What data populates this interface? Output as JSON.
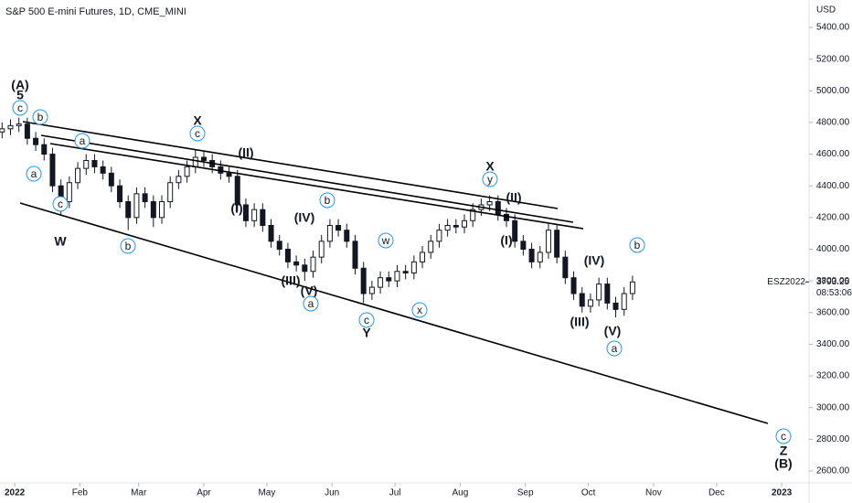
{
  "chart_data": {
    "type": "candlestick",
    "title": "S&P 500 E-mini Futures, 1D, CME_MINI",
    "currency": "USD",
    "x": [
      -6,
      -2,
      2,
      6,
      10,
      14,
      18,
      22,
      26,
      30,
      34,
      38,
      42,
      46,
      50,
      54,
      58,
      62,
      66,
      70,
      74,
      78,
      82,
      86,
      90,
      94,
      98,
      102,
      106,
      110,
      114,
      118,
      122,
      126,
      130,
      134,
      138,
      142,
      146,
      150,
      154,
      158,
      162,
      166,
      170,
      174,
      178,
      182,
      186,
      190,
      194,
      198,
      202,
      206,
      210,
      214,
      218,
      222,
      226,
      230,
      234,
      238,
      242,
      246,
      250,
      254,
      258,
      262,
      266,
      270,
      274,
      278,
      282,
      286,
      290,
      294
    ],
    "open": [
      4740,
      4760,
      4780,
      4790,
      4700,
      4660,
      4600,
      4400,
      4300,
      4420,
      4510,
      4560,
      4520,
      4480,
      4400,
      4300,
      4200,
      4350,
      4300,
      4200,
      4300,
      4420,
      4460,
      4520,
      4580,
      4560,
      4520,
      4480,
      4460,
      4280,
      4180,
      4250,
      4150,
      4050,
      4000,
      3920,
      3900,
      3860,
      3950,
      4050,
      4150,
      4120,
      4050,
      3880,
      3720,
      3760,
      3820,
      3800,
      3860,
      3850,
      3920,
      3980,
      4050,
      4120,
      4150,
      4140,
      4180,
      4250,
      4280,
      4300,
      4220,
      4180,
      4050,
      4000,
      3920,
      3980,
      4120,
      3950,
      3820,
      3720,
      3640,
      3680,
      3780,
      3660,
      3620,
      3720
    ],
    "high": [
      4800,
      4820,
      4830,
      4830,
      4740,
      4700,
      4640,
      4440,
      4460,
      4550,
      4600,
      4600,
      4560,
      4520,
      4440,
      4340,
      4390,
      4390,
      4340,
      4340,
      4460,
      4500,
      4560,
      4630,
      4620,
      4600,
      4560,
      4520,
      4500,
      4320,
      4290,
      4290,
      4190,
      4090,
      4040,
      3960,
      3940,
      3990,
      4090,
      4190,
      4190,
      4160,
      4090,
      3920,
      3800,
      3860,
      3860,
      3900,
      3900,
      3960,
      4020,
      4090,
      4160,
      4190,
      4190,
      4220,
      4290,
      4320,
      4340,
      4340,
      4260,
      4220,
      4090,
      4040,
      4020,
      4160,
      4160,
      3990,
      3860,
      3760,
      3720,
      3820,
      3820,
      3700,
      3760,
      3833
    ],
    "low": [
      4700,
      4720,
      4740,
      4660,
      4620,
      4560,
      4360,
      4220,
      4260,
      4380,
      4470,
      4480,
      4440,
      4360,
      4260,
      4120,
      4160,
      4260,
      4140,
      4160,
      4260,
      4380,
      4420,
      4480,
      4520,
      4480,
      4440,
      4420,
      4240,
      4140,
      4140,
      4110,
      4010,
      3960,
      3880,
      3860,
      3800,
      3820,
      3910,
      4010,
      4080,
      4010,
      3840,
      3660,
      3680,
      3720,
      3760,
      3760,
      3810,
      3810,
      3880,
      3940,
      4010,
      4080,
      4100,
      4100,
      4140,
      4210,
      4240,
      4180,
      4140,
      4010,
      3960,
      3880,
      3880,
      3940,
      3910,
      3780,
      3680,
      3600,
      3600,
      3640,
      3620,
      3570,
      3580,
      3680
    ],
    "close": [
      4760,
      4780,
      4790,
      4700,
      4660,
      4600,
      4400,
      4300,
      4420,
      4510,
      4560,
      4520,
      4480,
      4400,
      4300,
      4200,
      4350,
      4300,
      4200,
      4300,
      4420,
      4460,
      4520,
      4580,
      4560,
      4520,
      4480,
      4460,
      4280,
      4180,
      4250,
      4150,
      4050,
      4000,
      3920,
      3900,
      3860,
      3950,
      4050,
      4150,
      4120,
      4050,
      3880,
      3720,
      3760,
      3820,
      3800,
      3860,
      3850,
      3920,
      3980,
      4050,
      4120,
      4150,
      4140,
      4180,
      4250,
      4280,
      4300,
      4220,
      4180,
      4050,
      4000,
      3920,
      3980,
      4120,
      3950,
      3820,
      3720,
      3640,
      3680,
      3780,
      3660,
      3620,
      3720,
      3793.25
    ],
    "up_color": "#ffffff",
    "down_color": "#131722",
    "wick_color": "#131722",
    "xlim": [
      -7,
      378
    ],
    "xticks": [
      {
        "value": 0,
        "label": "2022"
      },
      {
        "value": 31,
        "label": "Feb"
      },
      {
        "value": 59,
        "label": "Mar"
      },
      {
        "value": 90,
        "label": "Apr"
      },
      {
        "value": 120,
        "label": "May"
      },
      {
        "value": 151,
        "label": "Jun"
      },
      {
        "value": 181,
        "label": "Jul"
      },
      {
        "value": 212,
        "label": "Aug"
      },
      {
        "value": 243,
        "label": "Sep"
      },
      {
        "value": 273,
        "label": "Oct"
      },
      {
        "value": 304,
        "label": "Nov"
      },
      {
        "value": 334,
        "label": "Dec"
      },
      {
        "value": 365,
        "label": "2023"
      }
    ],
    "ylim": [
      2525,
      5573
    ],
    "yticks": [
      {
        "value": 5400,
        "label": "5400.00"
      },
      {
        "value": 5200,
        "label": "5200.00"
      },
      {
        "value": 5000,
        "label": "5000.00"
      },
      {
        "value": 4800,
        "label": "4800.00"
      },
      {
        "value": 4600,
        "label": "4600.00"
      },
      {
        "value": 4400,
        "label": "4400.00"
      },
      {
        "value": 4200,
        "label": "4200.00"
      },
      {
        "value": 4000,
        "label": "4000.00"
      },
      {
        "value": 3800,
        "label": "3800.00"
      },
      {
        "value": 3600,
        "label": "3600.00"
      },
      {
        "value": 3400,
        "label": "3400.00"
      },
      {
        "value": 3200,
        "label": "3200.00"
      },
      {
        "value": 3000,
        "label": "3000.00"
      },
      {
        "value": 2800,
        "label": "2800.00"
      },
      {
        "value": 2600,
        "label": "2600.00"
      }
    ],
    "last_price": {
      "value": 3793.25,
      "label": "3793.25",
      "symbol": "ESZ2022",
      "countdown": "08:53:06"
    },
    "annotations": [
      {
        "text": "(A)",
        "color": "#1b5e20",
        "circle": false
      },
      {
        "text": "5",
        "color": "#880e4f",
        "circle": false
      },
      {
        "text": "c",
        "color": "#2196f3",
        "circle": true
      },
      {
        "text": "b",
        "color": "#2196f3",
        "circle": true
      },
      {
        "text": "a",
        "color": "#2196f3",
        "circle": true
      },
      {
        "text": "c",
        "color": "#2196f3",
        "circle": true
      },
      {
        "text": "W",
        "color": "#880e4f",
        "circle": false
      },
      {
        "text": "a",
        "color": "#2196f3",
        "circle": true
      },
      {
        "text": "b",
        "color": "#2196f3",
        "circle": true
      },
      {
        "text": "X",
        "color": "#880e4f",
        "circle": false
      },
      {
        "text": "c",
        "color": "#2196f3",
        "circle": true
      },
      {
        "text": "(II)",
        "color": "#26a69a",
        "circle": false
      },
      {
        "text": "(I)",
        "color": "#26a69a",
        "circle": false
      },
      {
        "text": "(IV)",
        "color": "#26a69a",
        "circle": false
      },
      {
        "text": "b",
        "color": "#2196f3",
        "circle": true
      },
      {
        "text": "(III)",
        "color": "#26a69a",
        "circle": false
      },
      {
        "text": "(V)",
        "color": "#26a69a",
        "circle": false
      },
      {
        "text": "a",
        "color": "#2196f3",
        "circle": true
      },
      {
        "text": "w",
        "color": "#2196f3",
        "circle": true
      },
      {
        "text": "c",
        "color": "#2196f3",
        "circle": true
      },
      {
        "text": "Y",
        "color": "#880e4f",
        "circle": false
      },
      {
        "text": "x",
        "color": "#2196f3",
        "circle": true
      },
      {
        "text": "X",
        "color": "#880e4f",
        "circle": false
      },
      {
        "text": "y",
        "color": "#2196f3",
        "circle": true
      },
      {
        "text": "(II)",
        "color": "#26a69a",
        "circle": false
      },
      {
        "text": "(I)",
        "color": "#26a69a",
        "circle": false
      },
      {
        "text": "(IV)",
        "color": "#26a69a",
        "circle": false
      },
      {
        "text": "b",
        "color": "#2196f3",
        "circle": true
      },
      {
        "text": "(III)",
        "color": "#26a69a",
        "circle": false
      },
      {
        "text": "(V)",
        "color": "#26a69a",
        "circle": false
      },
      {
        "text": "a",
        "color": "#2196f3",
        "circle": true
      },
      {
        "text": "c",
        "color": "#2196f3",
        "circle": true
      },
      {
        "text": "Z",
        "color": "#880e4f",
        "circle": false
      },
      {
        "text": "(B)",
        "color": "#1b5e20",
        "circle": false
      }
    ]
  }
}
